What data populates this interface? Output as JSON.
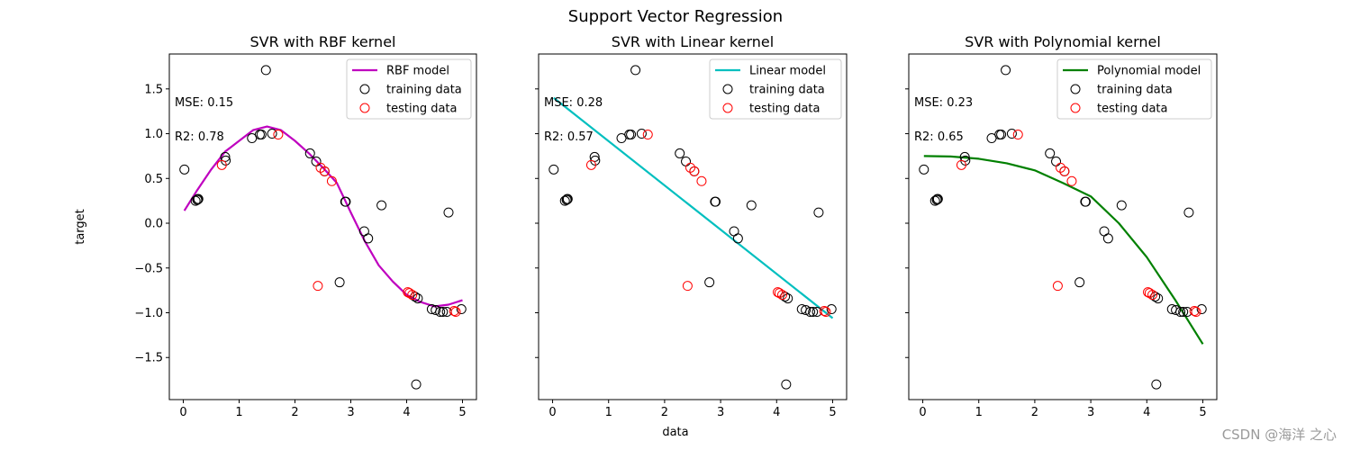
{
  "figure": {
    "suptitle": "Support Vector Regression",
    "xlabel": "data",
    "ylabel": "target",
    "watermark": "CSDN @海洋 之心"
  },
  "chart_data": [
    {
      "type": "scatter",
      "title": "SVR with RBF kernel",
      "xlim": [
        -0.25,
        5.25
      ],
      "ylim": [
        -1.97,
        1.89
      ],
      "xticks": [
        0,
        1,
        2,
        3,
        4,
        5
      ],
      "yticks": [
        -1.5,
        -1.0,
        -0.5,
        0.0,
        0.5,
        1.0,
        1.5
      ],
      "show_yticklabels": true,
      "model": {
        "name": "RBF model",
        "color": "#bf00bf",
        "x": [
          0.02,
          0.25,
          0.5,
          0.75,
          1.0,
          1.25,
          1.5,
          1.75,
          2.0,
          2.25,
          2.5,
          2.75,
          3.0,
          3.25,
          3.5,
          3.75,
          4.0,
          4.25,
          4.5,
          4.75,
          5.0
        ],
        "y": [
          0.14,
          0.37,
          0.6,
          0.8,
          0.92,
          1.04,
          1.08,
          1.04,
          0.92,
          0.78,
          0.62,
          0.45,
          0.12,
          -0.2,
          -0.47,
          -0.65,
          -0.8,
          -0.88,
          -0.93,
          -0.91,
          -0.86
        ]
      },
      "annotations": [
        "MSE: 0.15",
        "R2: 0.78"
      ],
      "legend": [
        "RBF model",
        "training data",
        "testing data"
      ]
    },
    {
      "type": "scatter",
      "title": "SVR with Linear kernel",
      "xlim": [
        -0.25,
        5.25
      ],
      "ylim": [
        -1.97,
        1.89
      ],
      "xticks": [
        0,
        1,
        2,
        3,
        4,
        5
      ],
      "yticks": [
        -1.5,
        -1.0,
        -0.5,
        0.0,
        0.5,
        1.0,
        1.5
      ],
      "show_yticklabels": false,
      "model": {
        "name": "Linear model",
        "color": "#00bfbf",
        "x": [
          0.02,
          5.0
        ],
        "y": [
          1.4,
          -1.06
        ]
      },
      "annotations": [
        "MSE: 0.28",
        "R2: 0.57"
      ],
      "legend": [
        "Linear model",
        "training data",
        "testing data"
      ]
    },
    {
      "type": "scatter",
      "title": "SVR with Polynomial kernel",
      "xlim": [
        -0.25,
        5.25
      ],
      "ylim": [
        -1.97,
        1.89
      ],
      "xticks": [
        0,
        1,
        2,
        3,
        4,
        5
      ],
      "yticks": [
        -1.5,
        -1.0,
        -0.5,
        0.0,
        0.5,
        1.0,
        1.5
      ],
      "show_yticklabels": false,
      "model": {
        "name": "Polynomial model",
        "color": "#008000",
        "x": [
          0.02,
          0.5,
          1.0,
          1.5,
          2.0,
          2.5,
          3.0,
          3.5,
          4.0,
          4.5,
          5.0
        ],
        "y": [
          0.75,
          0.745,
          0.72,
          0.67,
          0.59,
          0.45,
          0.3,
          0.0,
          -0.38,
          -0.85,
          -1.35
        ]
      },
      "annotations": [
        "MSE: 0.23",
        "R2: 0.65"
      ],
      "legend": [
        "Polynomial model",
        "training data",
        "testing data"
      ]
    }
  ],
  "training_points": {
    "color": "#000000",
    "x": [
      0.02,
      0.22,
      0.25,
      0.26,
      0.27,
      0.75,
      0.76,
      1.23,
      1.37,
      1.4,
      1.48,
      1.59,
      2.27,
      2.38,
      2.53,
      2.9,
      2.91,
      3.24,
      3.31,
      3.55,
      2.8,
      4.15,
      4.2,
      4.45,
      4.52,
      4.6,
      4.65,
      4.72,
      4.98,
      4.75,
      4.17
    ],
    "y": [
      0.6,
      0.25,
      0.26,
      0.27,
      0.27,
      0.74,
      0.7,
      0.95,
      0.99,
      0.99,
      1.71,
      1.0,
      0.78,
      0.69,
      0.58,
      0.24,
      0.24,
      -0.09,
      -0.17,
      0.2,
      -0.66,
      -0.82,
      -0.84,
      -0.96,
      -0.97,
      -0.99,
      -0.99,
      -0.99,
      -0.96,
      0.12,
      -1.8
    ]
  },
  "testing_points": {
    "color": "#ff0000",
    "x": [
      0.69,
      1.7,
      2.41,
      2.46,
      2.53,
      2.66,
      4.02,
      4.05,
      4.1,
      4.85,
      4.88
    ],
    "y": [
      0.65,
      0.99,
      -0.7,
      0.62,
      0.58,
      0.47,
      -0.77,
      -0.78,
      -0.8,
      -0.98,
      -0.99
    ]
  }
}
